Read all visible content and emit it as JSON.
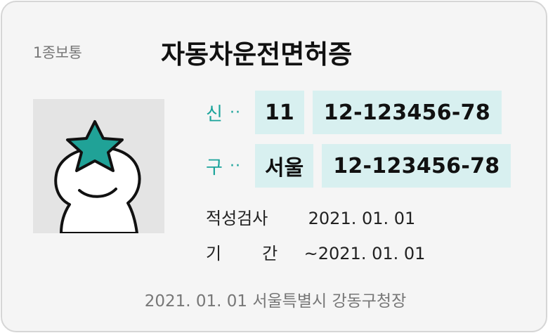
{
  "card": {
    "license_type": "1종보통",
    "title": "자동차운전면허증"
  },
  "photo": {
    "icon": "smiley-star-avatar",
    "star_color": "#20A297"
  },
  "numbers": {
    "new": {
      "label": "신",
      "dots": "··",
      "region": "11",
      "number": "12-123456-78"
    },
    "old": {
      "label": "구",
      "dots": "··",
      "region": "서울",
      "number": "12-123456-78"
    }
  },
  "info": {
    "aptitude_label": "적성검사",
    "aptitude_value": "2021. 01. 01",
    "period_label_1": "기",
    "period_label_2": "간",
    "period_value": "~2021. 01. 01"
  },
  "footer": "2021. 01. 01  서울특별시 강동구청장",
  "colors": {
    "accent": "#1AA39A",
    "chip_bg": "#D8F0F0",
    "card_bg": "#F5F5F5"
  }
}
